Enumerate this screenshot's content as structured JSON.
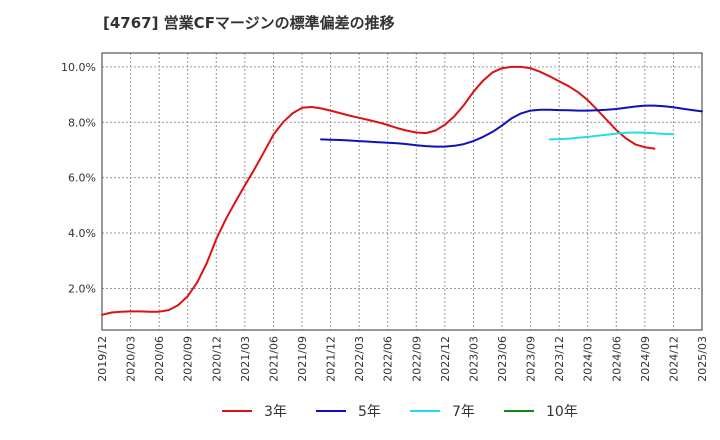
{
  "title": "[4767]  営業CFマージンの標準偏差の推移",
  "chart_data": {
    "type": "line",
    "title": "[4767]  営業CFマージンの標準偏差の推移",
    "xlabel": "",
    "ylabel": "",
    "ylim": [
      0.5,
      10.5
    ],
    "y_ticks": [
      "2.0%",
      "4.0%",
      "6.0%",
      "8.0%",
      "10.0%"
    ],
    "y_tick_values": [
      2,
      4,
      6,
      8,
      10
    ],
    "x_ticks": [
      "2019/12",
      "2020/03",
      "2020/06",
      "2020/09",
      "2020/12",
      "2021/03",
      "2021/06",
      "2021/09",
      "2021/12",
      "2022/03",
      "2022/06",
      "2022/09",
      "2022/12",
      "2023/03",
      "2023/06",
      "2023/09",
      "2023/12",
      "2024/03",
      "2024/06",
      "2024/09",
      "2024/12",
      "2025/03"
    ],
    "grid": true,
    "legend_position": "bottom",
    "series": [
      {
        "name": "3年",
        "color": "#dd1111",
        "start": "2019/12",
        "values": [
          1.05,
          1.13,
          1.16,
          1.17,
          1.17,
          1.16,
          1.16,
          1.22,
          1.4,
          1.72,
          2.22,
          2.92,
          3.78,
          4.5,
          5.12,
          5.72,
          6.3,
          6.92,
          7.55,
          8.0,
          8.32,
          8.52,
          8.55,
          8.5,
          8.42,
          8.33,
          8.24,
          8.16,
          8.08,
          8.0,
          7.9,
          7.79,
          7.7,
          7.63,
          7.61,
          7.7,
          7.91,
          8.22,
          8.62,
          9.1,
          9.5,
          9.8,
          9.95,
          10.0,
          10.0,
          9.95,
          9.82,
          9.66,
          9.48,
          9.3,
          9.08,
          8.8,
          8.45,
          8.08,
          7.72,
          7.42,
          7.2,
          7.1,
          7.05
        ]
      },
      {
        "name": "5年",
        "color": "#1111bb",
        "start": "2021/11",
        "values": [
          7.38,
          7.37,
          7.36,
          7.34,
          7.32,
          7.3,
          7.28,
          7.26,
          7.24,
          7.21,
          7.17,
          7.14,
          7.12,
          7.12,
          7.15,
          7.21,
          7.32,
          7.47,
          7.65,
          7.88,
          8.14,
          8.32,
          8.42,
          8.45,
          8.45,
          8.44,
          8.43,
          8.42,
          8.42,
          8.43,
          8.45,
          8.48,
          8.52,
          8.57,
          8.6,
          8.6,
          8.58,
          8.54,
          8.49,
          8.44,
          8.39
        ]
      },
      {
        "name": "7年",
        "color": "#22ddee",
        "start": "2023/11",
        "values": [
          7.38,
          7.39,
          7.41,
          7.44,
          7.47,
          7.51,
          7.55,
          7.59,
          7.62,
          7.63,
          7.62,
          7.6,
          7.58,
          7.57
        ]
      },
      {
        "name": "10年",
        "color": "#118811",
        "start": "",
        "values": []
      }
    ]
  }
}
